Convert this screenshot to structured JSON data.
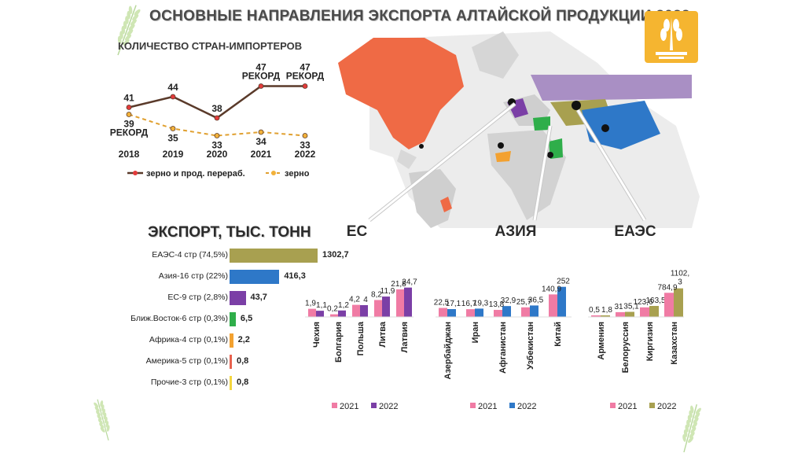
{
  "title": "ОСНОВНЫЕ НАПРАВЛЕНИЯ ЭКСПОРТА АЛТАЙСКОЙ ПРОДУКЦИИ 2022",
  "colors": {
    "grain_processed": "#5a3a2a",
    "grain": "#e0a030",
    "c2021": "#f07ba4",
    "eaes": "#a8a050",
    "asia": "#2e78c8",
    "eu": "#7b3fa6",
    "mideast": "#2fae4a",
    "africa": "#f3a130",
    "america": "#e8624e",
    "other": "#f4d640"
  },
  "section_labels": {
    "eu": "ЕС",
    "asia": "АЗИЯ",
    "eaes": "ЕАЭС"
  },
  "chart_data": [
    {
      "type": "line",
      "title": "КОЛИЧЕСТВО СТРАН-ИМПОРТЕРОВ",
      "x": [
        "2018",
        "2019",
        "2020",
        "2021",
        "2022"
      ],
      "series": [
        {
          "name": "зерно и прод. перераб.",
          "values": [
            41,
            44,
            38,
            47,
            47
          ],
          "labels": [
            "41",
            "44",
            "38",
            "47\nРЕКОРД",
            "47\nРЕКОРД"
          ]
        },
        {
          "name": "зерно",
          "values": [
            39,
            35,
            33,
            34,
            33
          ],
          "labels": [
            "39\nРЕКОРД",
            "35",
            "33",
            "34",
            "33"
          ]
        }
      ]
    },
    {
      "type": "bar",
      "orientation": "horizontal",
      "title": "ЭКСПОРТ, ТЫС. ТОНН",
      "categories": [
        "ЕАЭС-4 стр (74,5%)",
        "Азия-16 стр (22%)",
        "ЕС-9 стр (2,8%)",
        "Ближ.Восток-6 стр (0,3%)",
        "Африка-4 стр (0,1%)",
        "Америка-5 стр (0,1%)",
        "Прочие-3 стр (0,1%)"
      ],
      "values": [
        1302.7,
        416.3,
        43.7,
        6.5,
        2.2,
        0.8,
        0.8
      ],
      "value_labels": [
        "1302,7",
        "416,3",
        "43,7",
        "6,5",
        "2,2",
        "0,8",
        "0,8"
      ],
      "colors": [
        "#a8a050",
        "#2e78c8",
        "#7b3fa6",
        "#2fae4a",
        "#f3a130",
        "#e8624e",
        "#f4d640"
      ]
    },
    {
      "type": "bar",
      "group": "ЕС",
      "categories": [
        "Чехия",
        "Болгария",
        "Польша",
        "Литва",
        "Латвия"
      ],
      "series": [
        {
          "name": "2021",
          "values": [
            1.9,
            0.2,
            4.2,
            8.2,
            21.8
          ],
          "labels": [
            "1,9",
            "0,2",
            "4,2",
            "8,2",
            "21,8"
          ]
        },
        {
          "name": "2022",
          "values": [
            1.1,
            1.2,
            4,
            11.9,
            24.7
          ],
          "labels": [
            "1,1",
            "1,2",
            "4",
            "11,9",
            "24,7"
          ]
        }
      ]
    },
    {
      "type": "bar",
      "group": "АЗИЯ",
      "categories": [
        "Азербайджан",
        "Иран",
        "Афганистан",
        "Узбекистан",
        "Китай"
      ],
      "series": [
        {
          "name": "2021",
          "values": [
            22.5,
            16.7,
            13.8,
            25.7,
            140.9
          ],
          "labels": [
            "22,5",
            "16,7",
            "13,8",
            "25,7",
            "140,9"
          ]
        },
        {
          "name": "2022",
          "values": [
            17.1,
            19.3,
            32.9,
            36.5,
            252
          ],
          "labels": [
            "17,1",
            "19,3",
            "32,9",
            "36,5",
            "252"
          ]
        }
      ]
    },
    {
      "type": "bar",
      "group": "ЕАЭС",
      "categories": [
        "Армения",
        "Белоруссия",
        "Киргизия",
        "Казахстан"
      ],
      "series": [
        {
          "name": "2021",
          "values": [
            0.5,
            31,
            123.6,
            784.9
          ],
          "labels": [
            "0,5",
            "31",
            "123,6",
            "784,9"
          ]
        },
        {
          "name": "2022",
          "values": [
            1.8,
            35.1,
            163.5,
            1102.3
          ],
          "labels": [
            "1,8",
            "35,1",
            "163,5",
            "1102,\n3"
          ]
        }
      ]
    }
  ]
}
